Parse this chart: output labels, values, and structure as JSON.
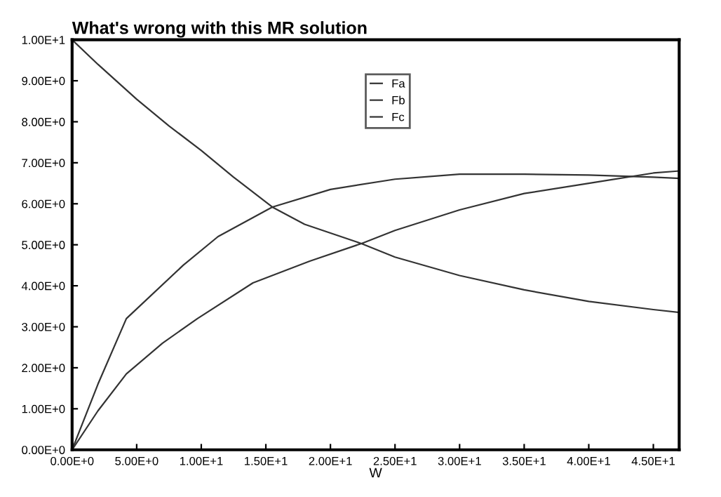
{
  "chart_data": {
    "type": "line",
    "title": "What's wrong with this MR solution",
    "xlabel": "W",
    "xlim": [
      0,
      47
    ],
    "ylim": [
      0,
      10
    ],
    "xticks": [
      {
        "value": 0,
        "label": "0.00E+0"
      },
      {
        "value": 5,
        "label": "5.00E+0"
      },
      {
        "value": 10,
        "label": "1.00E+1"
      },
      {
        "value": 15,
        "label": "1.50E+1"
      },
      {
        "value": 20,
        "label": "2.00E+1"
      },
      {
        "value": 25,
        "label": "2.50E+1"
      },
      {
        "value": 30,
        "label": "3.00E+1"
      },
      {
        "value": 35,
        "label": "3.50E+1"
      },
      {
        "value": 40,
        "label": "4.00E+1"
      },
      {
        "value": 45,
        "label": "4.50E+1"
      }
    ],
    "yticks": [
      {
        "value": 0,
        "label": "0.00E+0"
      },
      {
        "value": 1,
        "label": "1.00E+0"
      },
      {
        "value": 2,
        "label": "2.00E+0"
      },
      {
        "value": 3,
        "label": "3.00E+0"
      },
      {
        "value": 4,
        "label": "4.00E+0"
      },
      {
        "value": 5,
        "label": "5.00E+0"
      },
      {
        "value": 6,
        "label": "6.00E+0"
      },
      {
        "value": 7,
        "label": "7.00E+0"
      },
      {
        "value": 8,
        "label": "8.00E+0"
      },
      {
        "value": 9,
        "label": "9.00E+0"
      },
      {
        "value": 10,
        "label": "1.00E+1"
      }
    ],
    "grid": false,
    "legend": "top",
    "marker": "none",
    "line_style": "solid",
    "series": [
      {
        "name": "Fa",
        "color": "#333333",
        "x": [
          0,
          2,
          5,
          7.5,
          10,
          12.5,
          15.5,
          18,
          22.4,
          25,
          30,
          35,
          40,
          45,
          47
        ],
        "values": [
          10,
          9.4,
          8.55,
          7.9,
          7.3,
          6.65,
          5.92,
          5.5,
          5.03,
          4.7,
          4.25,
          3.9,
          3.62,
          3.42,
          3.35
        ]
      },
      {
        "name": "Fb",
        "color": "#333333",
        "x": [
          0,
          2,
          4.2,
          8.6,
          11.3,
          15.5,
          20,
          25,
          30,
          35,
          40,
          45,
          47
        ],
        "values": [
          0,
          1.6,
          3.2,
          4.5,
          5.2,
          5.92,
          6.35,
          6.6,
          6.72,
          6.72,
          6.7,
          6.65,
          6.62
        ]
      },
      {
        "name": "Fc",
        "color": "#333333",
        "x": [
          0,
          2,
          4.2,
          7,
          9.7,
          14,
          18.4,
          22.4,
          25,
          30,
          35,
          40,
          45,
          47
        ],
        "values": [
          0,
          0.95,
          1.85,
          2.6,
          3.2,
          4.07,
          4.6,
          5.03,
          5.35,
          5.85,
          6.25,
          6.5,
          6.75,
          6.8
        ]
      }
    ]
  }
}
